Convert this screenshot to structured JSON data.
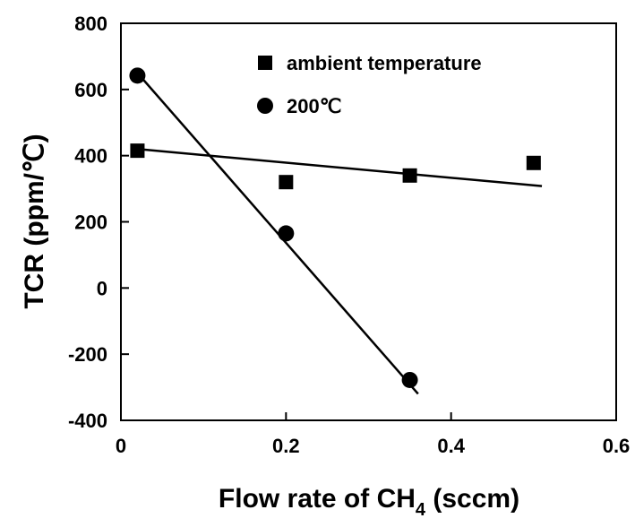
{
  "chart_data": {
    "type": "scatter",
    "title": "",
    "xlabel": "Flow rate of CH4 (sccm)",
    "xlabel_main": "Flow rate of CH",
    "xlabel_sub": "4",
    "xlabel_tail": " (sccm)",
    "ylabel": "TCR (ppm/℃)",
    "xlim": [
      0,
      0.6
    ],
    "ylim": [
      -400,
      800
    ],
    "x_ticks": [
      0,
      0.2,
      0.4,
      0.6
    ],
    "x_tick_labels": [
      "0",
      "0.2",
      "0.4",
      "0.6"
    ],
    "y_ticks": [
      -400,
      -200,
      0,
      200,
      400,
      600,
      800
    ],
    "y_tick_labels": [
      "-400",
      "-200",
      "0",
      "200",
      "400",
      "600",
      "800"
    ],
    "grid": false,
    "legend_position": "top-right",
    "series": [
      {
        "name": "ambient temperature",
        "marker": "square",
        "color": "#000000",
        "x": [
          0.02,
          0.2,
          0.35,
          0.5
        ],
        "y": [
          415,
          320,
          340,
          378
        ],
        "fit": {
          "x": [
            0.02,
            0.51
          ],
          "y": [
            420,
            308
          ]
        }
      },
      {
        "name": "200℃",
        "marker": "circle",
        "color": "#000000",
        "x": [
          0.02,
          0.2,
          0.35
        ],
        "y": [
          642,
          165,
          -278
        ],
        "fit": {
          "x": [
            0.02,
            0.36
          ],
          "y": [
            650,
            -320
          ]
        }
      }
    ]
  }
}
